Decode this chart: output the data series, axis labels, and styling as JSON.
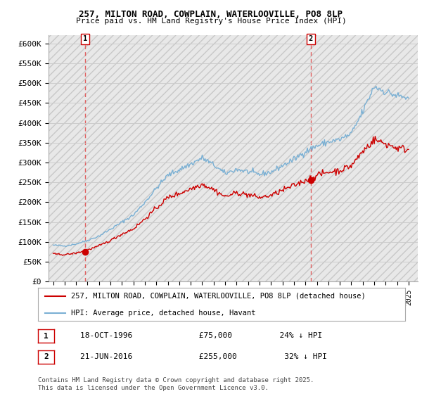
{
  "title1": "257, MILTON ROAD, COWPLAIN, WATERLOOVILLE, PO8 8LP",
  "title2": "Price paid vs. HM Land Registry's House Price Index (HPI)",
  "legend_line1": "257, MILTON ROAD, COWPLAIN, WATERLOOVILLE, PO8 8LP (detached house)",
  "legend_line2": "HPI: Average price, detached house, Havant",
  "annotation1_label": "1",
  "annotation1_date": "18-OCT-1996",
  "annotation1_price": "£75,000",
  "annotation1_hpi": "24% ↓ HPI",
  "annotation2_label": "2",
  "annotation2_date": "21-JUN-2016",
  "annotation2_price": "£255,000",
  "annotation2_hpi": "32% ↓ HPI",
  "footer": "Contains HM Land Registry data © Crown copyright and database right 2025.\nThis data is licensed under the Open Government Licence v3.0.",
  "sale1_x": 1996.79,
  "sale1_y": 75000,
  "sale2_x": 2016.47,
  "sale2_y": 255000,
  "ylim": [
    0,
    620000
  ],
  "xlim_start": 1993.6,
  "xlim_end": 2025.8,
  "yticks": [
    0,
    50000,
    100000,
    150000,
    200000,
    250000,
    300000,
    350000,
    400000,
    450000,
    500000,
    550000,
    600000
  ],
  "ytick_labels": [
    "£0",
    "£50K",
    "£100K",
    "£150K",
    "£200K",
    "£250K",
    "£300K",
    "£350K",
    "£400K",
    "£450K",
    "£500K",
    "£550K",
    "£600K"
  ],
  "red_color": "#cc0000",
  "blue_color": "#7ab0d4",
  "grid_color": "#cccccc",
  "sale_marker_color": "#cc0000",
  "vline_color": "#e06060",
  "hatch_facecolor": "#e8e8e8",
  "hatch_edgecolor": "#c8c8c8"
}
